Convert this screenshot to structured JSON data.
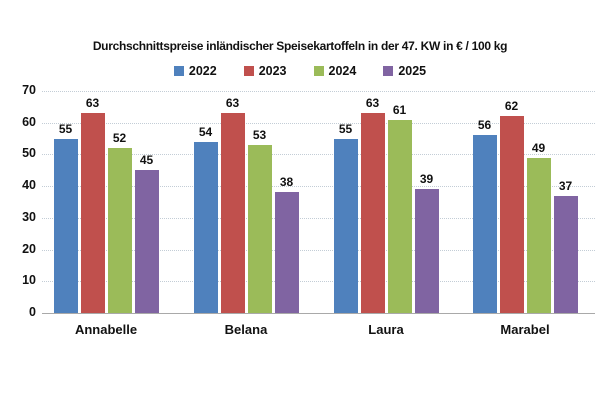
{
  "chart_data": {
    "type": "bar",
    "title": "Durchschnittspreise inländischer Speisekartoffeln in der 47. KW in € / 100 kg",
    "categories": [
      "Annabelle",
      "Belana",
      "Laura",
      "Marabel"
    ],
    "series": [
      {
        "name": "2022",
        "color": "#4F81BD",
        "values": [
          55,
          54,
          55,
          56
        ]
      },
      {
        "name": "2023",
        "color": "#C0504D",
        "values": [
          63,
          63,
          63,
          62
        ]
      },
      {
        "name": "2024",
        "color": "#9BBB59",
        "values": [
          52,
          53,
          61,
          49
        ]
      },
      {
        "name": "2025",
        "color": "#8064A2",
        "values": [
          45,
          38,
          39,
          37
        ]
      }
    ],
    "ylim": [
      0,
      70
    ],
    "yticks": [
      0,
      10,
      20,
      30,
      40,
      50,
      60,
      70
    ],
    "grid": "horizontal-dotted",
    "legend_position": "top",
    "value_labels": true,
    "xlabel": "",
    "ylabel": ""
  },
  "colors": {
    "background": "#ffffff",
    "gridline": "#c3cdd6",
    "axis_line": "#a9a9a9",
    "text": "#111111"
  }
}
